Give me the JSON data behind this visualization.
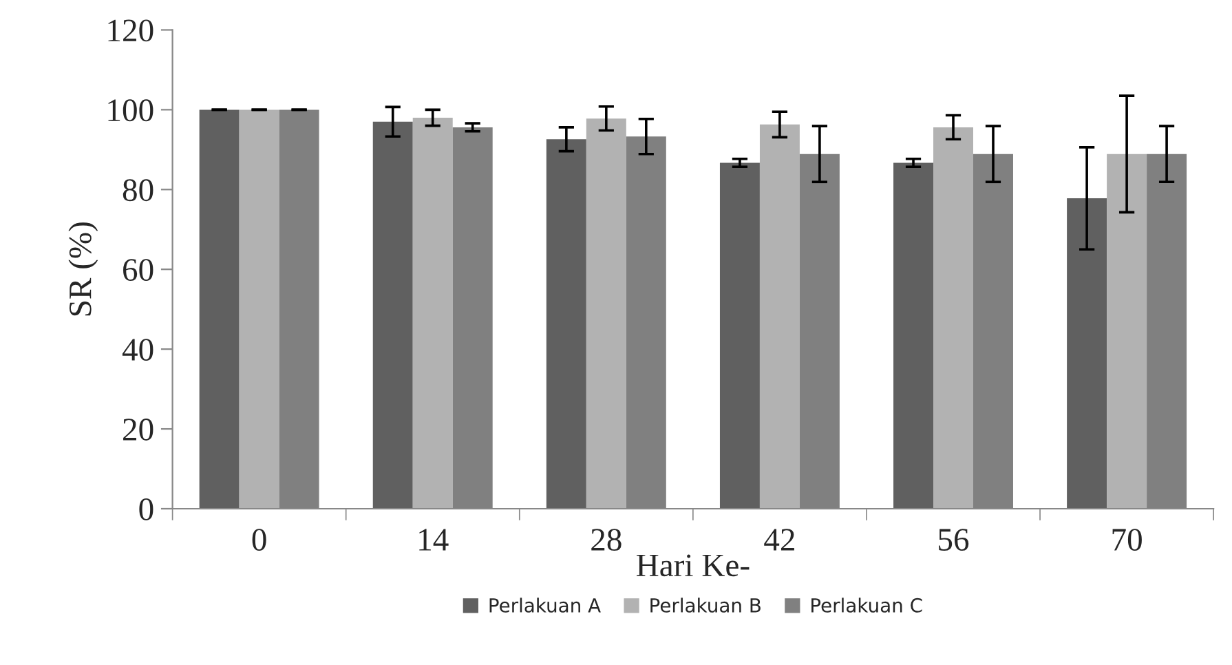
{
  "chart_data": {
    "type": "bar",
    "xlabel": "Hari Ke-",
    "ylabel": "SR (%)",
    "categories": [
      "0",
      "14",
      "28",
      "42",
      "56",
      "70"
    ],
    "series": [
      {
        "name": "Perlakuan A",
        "color": "#606060",
        "values": [
          100,
          97,
          92.6,
          86.7,
          86.7,
          77.8
        ],
        "errors": [
          0,
          3.7,
          3,
          1,
          1,
          12.8
        ]
      },
      {
        "name": "Perlakuan B",
        "color": "#b2b2b2",
        "values": [
          100,
          98,
          97.8,
          96.3,
          95.6,
          88.9
        ],
        "errors": [
          0,
          2,
          3,
          3.2,
          3,
          14.6
        ]
      },
      {
        "name": "Perlakuan C",
        "color": "#808080",
        "values": [
          100,
          95.6,
          93.3,
          88.9,
          88.9,
          88.9
        ],
        "errors": [
          0,
          1,
          4.4,
          7,
          7,
          7
        ]
      }
    ],
    "ylim": [
      0,
      120
    ],
    "yticks": [
      0,
      20,
      40,
      60,
      80,
      100,
      120
    ],
    "grid": false,
    "legend": "bottom"
  }
}
